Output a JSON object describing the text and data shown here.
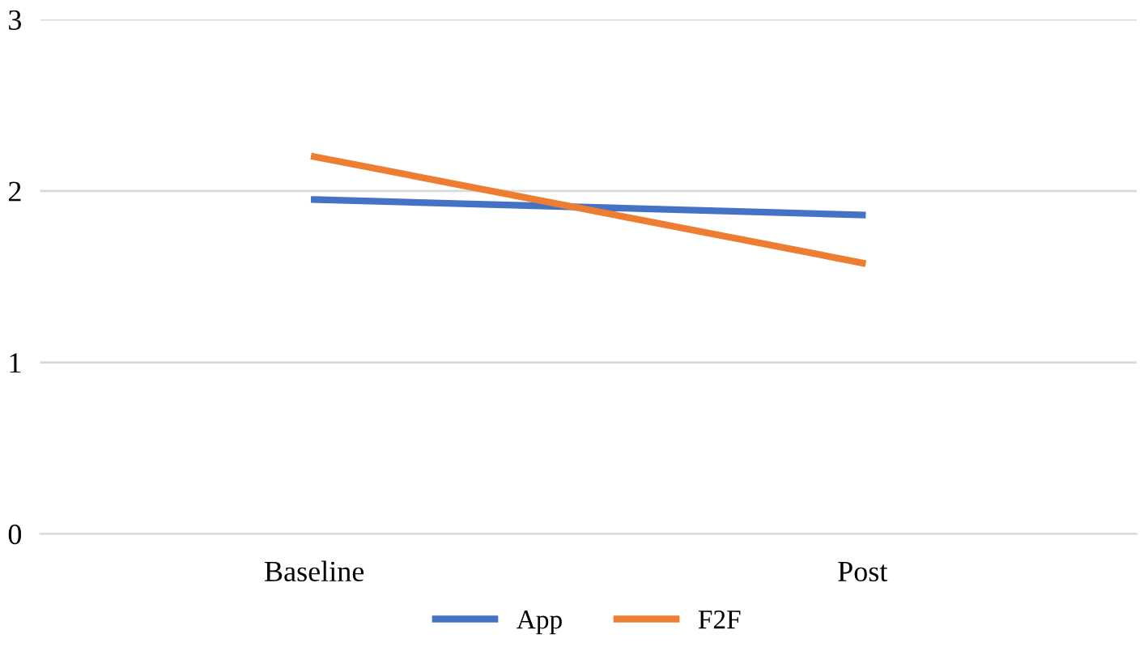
{
  "chart_data": {
    "type": "line",
    "categories": [
      "Baseline",
      "Post"
    ],
    "series": [
      {
        "name": "App",
        "color": "#4472c4",
        "values": [
          1.95,
          1.86
        ]
      },
      {
        "name": "F2F",
        "color": "#ed7d31",
        "values": [
          2.2,
          1.58
        ]
      }
    ],
    "ylim": [
      0,
      3
    ],
    "yticks": [
      0,
      1,
      2,
      3
    ],
    "grid": "y",
    "legend": "bottom",
    "marker": "none",
    "line_style": "solid"
  }
}
